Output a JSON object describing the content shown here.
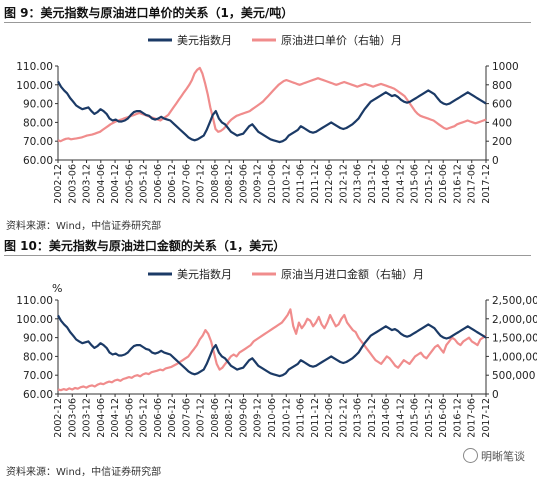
{
  "colors": {
    "usd": "#1b3a66",
    "oil": "#f08c8c",
    "axis": "#333333",
    "rule": "#999999"
  },
  "figures": [
    {
      "title": "图 9：美元指数与原油进口单价的关系（1，美元/吨）",
      "source": "资料来源：Wind，中信证券研究部"
    },
    {
      "title": "图 10：美元指数与原油进口金额的关系（1，美元）",
      "source": "资料来源：Wind，中信证券研究部"
    }
  ],
  "watermark": {
    "text": "明晰笔谈",
    "icon": "wechat-icon"
  },
  "chart_data": [
    {
      "type": "line",
      "unit_label": "",
      "legend": [
        "美元指数月",
        "原油进口单价（右轴）月"
      ],
      "legend_placement": "top",
      "y_left": {
        "min": 60,
        "max": 110,
        "ticks": [
          "60.00",
          "70.00",
          "80.00",
          "90.00",
          "100.00",
          "110.00"
        ]
      },
      "y_right": {
        "min": 0,
        "max": 1000,
        "ticks": [
          "0",
          "200",
          "400",
          "600",
          "800",
          "1000"
        ]
      },
      "x_ticks": [
        "2002-12",
        "2003-06",
        "2003-12",
        "2004-06",
        "2004-12",
        "2005-06",
        "2005-12",
        "2006-06",
        "2006-12",
        "2007-06",
        "2007-12",
        "2008-06",
        "2008-12",
        "2009-06",
        "2009-12",
        "2010-06",
        "2010-12",
        "2011-06",
        "2011-12",
        "2012-06",
        "2012-12",
        "2013-06",
        "2013-12",
        "2014-06",
        "2014-12",
        "2015-06",
        "2015-12",
        "2016-06",
        "2016-12",
        "2017-06",
        "2017-12"
      ],
      "series": [
        {
          "name": "美元指数月",
          "axis": "left",
          "color": "#1b3a66",
          "values": [
            101.8,
            99,
            97,
            95.5,
            93,
            91,
            89,
            88,
            87,
            87.5,
            88,
            86,
            84.5,
            85.5,
            87,
            86,
            84.5,
            82,
            81,
            81.5,
            80.5,
            80.5,
            81,
            82,
            84,
            85.5,
            86,
            86,
            85,
            84,
            83.5,
            82,
            81.5,
            82,
            83,
            82,
            81.5,
            81,
            79.5,
            78,
            76.5,
            75,
            73.5,
            72,
            71,
            70.5,
            71,
            72,
            73,
            76,
            80,
            84,
            86,
            82,
            80,
            79,
            77,
            75,
            74,
            73,
            73.5,
            74,
            76,
            78,
            79,
            77,
            75,
            74,
            73,
            72,
            71,
            70.5,
            70,
            69.5,
            70,
            71,
            73,
            74,
            75,
            76,
            78,
            77,
            76,
            75,
            74.5,
            75,
            76,
            77,
            78,
            79,
            80,
            79,
            78,
            77,
            76.5,
            77,
            78,
            79,
            80.5,
            82,
            84.5,
            87,
            89,
            91,
            92,
            93,
            94,
            95,
            96,
            95,
            94,
            94.5,
            93.5,
            92,
            91,
            90.5,
            91,
            92,
            93,
            94,
            95,
            96,
            97,
            96,
            95,
            93,
            91,
            90,
            89.5,
            90,
            91,
            92,
            93,
            94,
            95,
            96,
            95,
            94,
            93,
            92,
            91,
            90
          ]
        },
        {
          "name": "原油进口单价（右轴）月",
          "axis": "right",
          "color": "#f08c8c",
          "values": [
            210,
            200,
            215,
            225,
            230,
            220,
            225,
            230,
            235,
            240,
            250,
            260,
            265,
            270,
            280,
            290,
            300,
            320,
            340,
            360,
            380,
            395,
            410,
            420,
            430,
            440,
            450,
            460,
            470,
            480,
            490,
            500,
            490,
            480,
            470,
            460,
            450,
            440,
            430,
            420,
            440,
            460,
            480,
            520,
            560,
            600,
            640,
            680,
            720,
            760,
            800,
            850,
            920,
            960,
            980,
            920,
            820,
            700,
            560,
            450,
            330,
            300,
            310,
            330,
            360,
            400,
            430,
            450,
            470,
            480,
            490,
            500,
            510,
            520,
            540,
            560,
            580,
            600,
            620,
            650,
            680,
            710,
            740,
            770,
            800,
            820,
            840,
            850,
            840,
            830,
            820,
            810,
            800,
            810,
            820,
            830,
            840,
            850,
            860,
            870,
            860,
            850,
            840,
            830,
            820,
            810,
            800,
            810,
            820,
            830,
            820,
            810,
            800,
            790,
            780,
            790,
            800,
            810,
            800,
            790,
            780,
            790,
            800,
            810,
            800,
            790,
            780,
            770,
            760,
            740,
            720,
            700,
            680,
            640,
            600,
            560,
            520,
            490,
            470,
            460,
            450,
            440,
            430,
            420,
            400,
            380,
            360,
            340,
            330,
            340,
            350,
            360,
            380,
            390,
            400,
            410,
            420,
            410,
            400,
            390,
            400,
            410,
            420,
            430
          ]
        }
      ]
    },
    {
      "type": "line",
      "unit_label": "%",
      "legend": [
        "美元指数月",
        "原油当月进口金额（右轴）月"
      ],
      "legend_placement": "top",
      "y_left": {
        "min": 60,
        "max": 110,
        "ticks": [
          "60.00",
          "70.00",
          "80.00",
          "90.00",
          "100.00",
          "110.00"
        ]
      },
      "y_right": {
        "min": 0,
        "max": 2500000,
        "ticks": [
          "0",
          "500,000",
          "1,000,000",
          "1,500,000",
          "2,000,000",
          "2,500,000"
        ]
      },
      "x_ticks": [
        "2002-12",
        "2003-06",
        "2003-12",
        "2004-06",
        "2004-12",
        "2005-06",
        "2005-12",
        "2006-06",
        "2006-12",
        "2007-06",
        "2007-12",
        "2008-06",
        "2008-12",
        "2009-06",
        "2009-12",
        "2010-06",
        "2010-12",
        "2011-06",
        "2011-12",
        "2012-06",
        "2012-12",
        "2013-06",
        "2013-12",
        "2014-06",
        "2014-12",
        "2015-06",
        "2015-12",
        "2016-06",
        "2016-12",
        "2017-06",
        "2017-12"
      ],
      "series": [
        {
          "name": "美元指数月",
          "axis": "left",
          "color": "#1b3a66",
          "values": [
            101.8,
            99,
            97,
            95.5,
            93,
            91,
            89,
            88,
            87,
            87.5,
            88,
            86,
            84.5,
            85.5,
            87,
            86,
            84.5,
            82,
            81,
            81.5,
            80.5,
            80.5,
            81,
            82,
            84,
            85.5,
            86,
            86,
            85,
            84,
            83.5,
            82,
            81.5,
            82,
            83,
            82,
            81.5,
            81,
            79.5,
            78,
            76.5,
            75,
            73.5,
            72,
            71,
            70.5,
            71,
            72,
            73,
            76,
            80,
            84,
            86,
            82,
            80,
            79,
            77,
            75,
            74,
            73,
            73.5,
            74,
            76,
            78,
            79,
            77,
            75,
            74,
            73,
            72,
            71,
            70.5,
            70,
            69.5,
            70,
            71,
            73,
            74,
            75,
            76,
            78,
            77,
            76,
            75,
            74.5,
            75,
            76,
            77,
            78,
            79,
            80,
            79,
            78,
            77,
            76.5,
            77,
            78,
            79,
            80.5,
            82,
            84.5,
            87,
            89,
            91,
            92,
            93,
            94,
            95,
            96,
            95,
            94,
            94.5,
            93.5,
            92,
            91,
            90.5,
            91,
            92,
            93,
            94,
            95,
            96,
            97,
            96,
            95,
            93,
            91,
            90,
            89.5,
            90,
            91,
            92,
            93,
            94,
            95,
            96,
            95,
            94,
            93,
            92,
            91,
            90
          ]
        },
        {
          "name": "原油当月进口金额（右轴）月",
          "axis": "right",
          "color": "#f08c8c",
          "values": [
            120000,
            100000,
            130000,
            110000,
            150000,
            120000,
            160000,
            140000,
            180000,
            200000,
            170000,
            210000,
            230000,
            200000,
            250000,
            280000,
            260000,
            300000,
            330000,
            310000,
            360000,
            380000,
            350000,
            400000,
            420000,
            450000,
            430000,
            480000,
            500000,
            470000,
            520000,
            550000,
            530000,
            580000,
            600000,
            620000,
            650000,
            630000,
            680000,
            700000,
            720000,
            760000,
            800000,
            850000,
            900000,
            950000,
            1000000,
            1100000,
            1200000,
            1300000,
            1450000,
            1550000,
            1700000,
            1600000,
            1400000,
            1100000,
            800000,
            650000,
            700000,
            800000,
            900000,
            1000000,
            1050000,
            1000000,
            1100000,
            1150000,
            1200000,
            1250000,
            1300000,
            1400000,
            1450000,
            1500000,
            1550000,
            1600000,
            1650000,
            1700000,
            1750000,
            1800000,
            1850000,
            1900000,
            2000000,
            2100000,
            2250000,
            1800000,
            1600000,
            1900000,
            1750000,
            1850000,
            2000000,
            1950000,
            1800000,
            1900000,
            2050000,
            1850000,
            1750000,
            1900000,
            2100000,
            1950000,
            1800000,
            1850000,
            2000000,
            2100000,
            1900000,
            1800000,
            1700000,
            1650000,
            1500000,
            1400000,
            1300000,
            1200000,
            1100000,
            1000000,
            900000,
            850000,
            800000,
            900000,
            1000000,
            950000,
            850000,
            750000,
            700000,
            800000,
            900000,
            850000,
            800000,
            900000,
            1000000,
            1050000,
            1100000,
            1000000,
            950000,
            1050000,
            1150000,
            1250000,
            1300000,
            1200000,
            1100000,
            1300000,
            1400000,
            1500000,
            1450000,
            1350000,
            1300000,
            1400000,
            1450000,
            1500000,
            1400000,
            1350000,
            1300000,
            1450000,
            1500000,
            1550000
          ]
        }
      ]
    }
  ]
}
